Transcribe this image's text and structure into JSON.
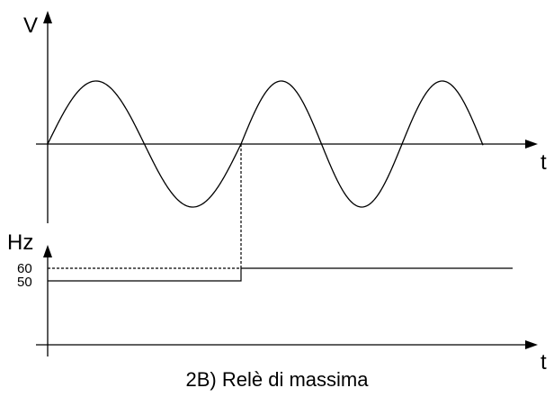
{
  "voltage_axis": {
    "label": "V",
    "time_label": "t"
  },
  "frequency_axis": {
    "label": "Hz",
    "level_high": "60",
    "level_low": "50",
    "time_label": "t"
  },
  "caption": "2B) Relè di massima"
}
